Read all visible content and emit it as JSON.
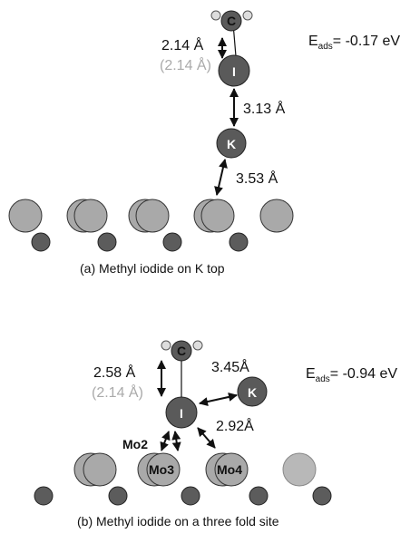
{
  "panels": [
    {
      "energy": {
        "symbol": "E",
        "subscript": "ads",
        "value": "= -0.17 eV"
      },
      "atoms": {
        "carbon": "C",
        "iodine": "I",
        "potassium": "K"
      },
      "distances": {
        "c_i": "2.14 Å",
        "c_i_ref": "(2.14 Å)",
        "i_k": "3.13 Å",
        "k_surface": "3.53 Å"
      },
      "caption": "(a) Methyl iodide on K top"
    },
    {
      "energy": {
        "symbol": "E",
        "subscript": "ads",
        "value": "= -0.94 eV"
      },
      "atoms": {
        "carbon": "C",
        "iodine": "I",
        "potassium": "K",
        "mo2": "Mo2",
        "mo3": "Mo3",
        "mo4": "Mo4"
      },
      "distances": {
        "c_i": "2.58 Å",
        "c_i_ref": "(2.14 Å)",
        "i_k": "3.45Å",
        "i_mo4": "2.92Å"
      },
      "caption": "(b) Methyl iodide on a three fold site"
    }
  ]
}
